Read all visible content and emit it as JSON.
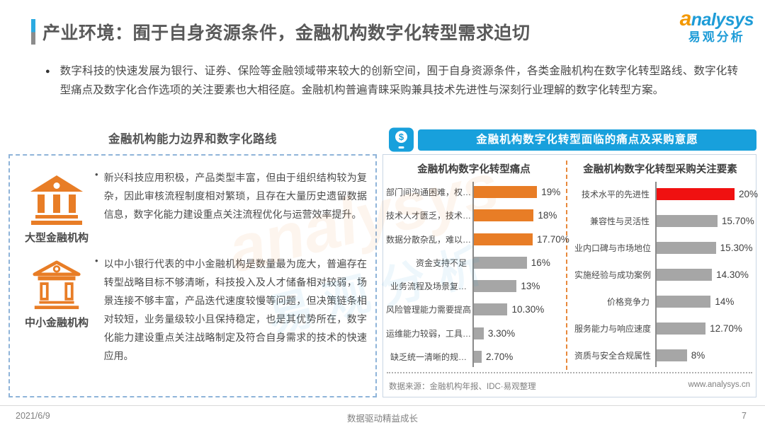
{
  "page": {
    "title": "产业环境：囿于自身资源条件，金融机构数字化转型需求迫切",
    "intro": "数字科技的快速发展为银行、证券、保险等金融领域带来较大的创新空间，囿于自身资源条件，各类金融机构在数字化转型路线、数字化转型痛点及数字化合作选项的关注要素也大相径庭。金融机构普遍青睐采购兼具技术先进性与深刻行业理解的数字化转型方案。",
    "footer": {
      "date": "2021/6/9",
      "slogan": "数据驱动精益成长",
      "page_number": "7"
    }
  },
  "logo": {
    "brand_first_letter": "a",
    "brand_rest": "nalysys",
    "brand_cn": "易观分析"
  },
  "left_panel": {
    "heading": "金融机构能力边界和数字化路线",
    "profiles": [
      {
        "label": "大型金融机构",
        "icon": "bank-large-icon",
        "bullet": "•",
        "text": "新兴科技应用积极，产品类型丰富，但由于组织结构较为复杂，因此审核流程制度相对繁琐，且存在大量历史遗留数据信息，数字化能力建设重点关注流程优化与运营效率提升。"
      },
      {
        "label": "中小金融机构",
        "icon": "bank-small-icon",
        "bullet": "•",
        "text": "以中小银行代表的中小金融机构是数量最为庞大，普遍存在转型战略目标不够清晰，科技投入及人才储备相对较弱，场景连接不够丰富，产品迭代速度较慢等问题，但决策链条相对较短，业务量级较小且保持稳定，也是其优势所在，数字化能力建设重点关注战略制定及符合自身需求的技术的快速应用。"
      }
    ]
  },
  "right_panel": {
    "header": "金融机构数字化转型面临的痛点及采购意愿",
    "header_icon": "mobile-payment-dollar-icon",
    "source": "数据来源：金融机构年报、IDC·易观整理",
    "website": "www.analysys.cn"
  },
  "chart_data": [
    {
      "type": "bar",
      "orientation": "horizontal",
      "title": "金融机构数字化转型痛点",
      "categories": [
        "部门间沟通困难，权…",
        "技术人才匮乏，技术…",
        "数据分散杂乱，难以…",
        "资金支持不足",
        "业务流程及场景复…",
        "风险管理能力需要提高",
        "运维能力较弱，工具…",
        "缺乏统一清晰的规…"
      ],
      "values": [
        19,
        18,
        17.7,
        16,
        13,
        10.3,
        3.3,
        2.7
      ],
      "value_labels": [
        "19%",
        "18%",
        "17.70%",
        "16%",
        "13%",
        "10.30%",
        "3.30%",
        "2.70%"
      ],
      "bar_colors": [
        "#E87D26",
        "#E87D26",
        "#E87D26",
        "#A6A6A6",
        "#A6A6A6",
        "#A6A6A6",
        "#A6A6A6",
        "#A6A6A6"
      ],
      "xlim": [
        0,
        20
      ],
      "grid": false,
      "legend": "none"
    },
    {
      "type": "bar",
      "orientation": "horizontal",
      "title": "金融机构数字化转型采购关注要素",
      "categories": [
        "技术水平的先进性",
        "兼容性与灵活性",
        "业内口碑与市场地位",
        "实施经验与成功案例",
        "价格竞争力",
        "服务能力与响应速度",
        "资质与安全合规属性"
      ],
      "values": [
        20,
        15.7,
        15.3,
        14.3,
        14,
        12.7,
        8
      ],
      "value_labels": [
        "20%",
        "15.70%",
        "15.30%",
        "14.30%",
        "14%",
        "12.70%",
        "8%"
      ],
      "bar_colors": [
        "#F01111",
        "#A6A6A6",
        "#A6A6A6",
        "#A6A6A6",
        "#A6A6A6",
        "#A6A6A6",
        "#A6A6A6"
      ],
      "xlim": [
        0,
        21
      ],
      "grid": false,
      "legend": "none"
    }
  ],
  "colors": {
    "accent_blue": "#18A0DC",
    "orange": "#E87D26",
    "highlight_red": "#F01111",
    "bar_gray": "#A6A6A6",
    "logo_blue": "#1E9CD7",
    "logo_orange": "#F39800"
  }
}
